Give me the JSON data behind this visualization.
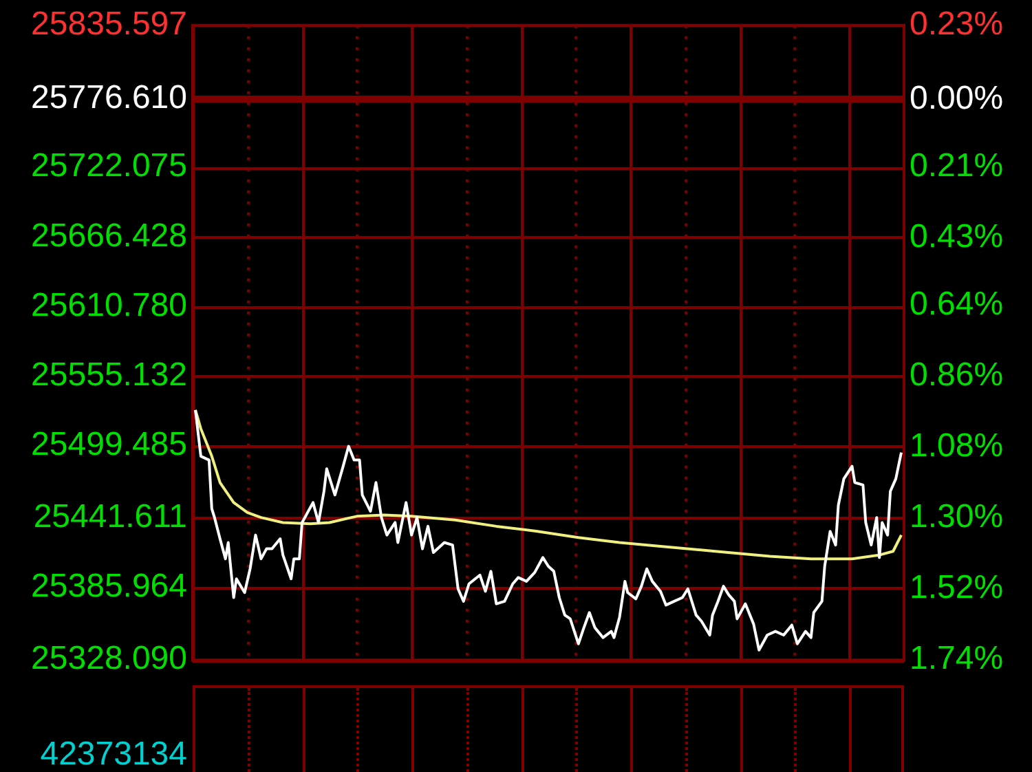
{
  "chart_data": [
    {
      "type": "line",
      "categories": [
        null,
        null,
        null,
        null,
        null,
        null,
        null,
        null,
        null,
        null,
        null,
        null,
        null,
        null,
        null,
        null,
        null,
        null,
        null,
        null,
        null,
        null,
        null,
        null,
        null,
        null,
        null,
        null,
        null,
        null,
        null,
        null,
        null,
        null,
        null,
        null,
        null,
        null,
        null,
        null,
        null,
        null,
        null,
        null,
        null,
        null,
        null,
        null,
        null,
        null,
        null,
        null,
        null,
        null,
        null,
        null,
        null,
        null,
        null,
        null,
        null,
        null,
        null,
        null,
        null,
        null,
        null,
        null,
        null,
        null,
        null,
        null,
        null,
        null,
        null,
        null,
        null,
        null,
        null,
        null,
        null,
        null,
        null,
        null,
        null,
        null,
        null,
        null,
        null,
        null,
        null,
        null,
        null,
        null,
        null,
        null,
        null,
        null,
        null,
        null,
        null,
        null,
        null,
        null,
        null,
        null,
        null,
        null,
        null,
        null,
        null,
        null,
        null,
        null,
        null,
        null,
        null,
        null,
        null,
        null,
        null,
        null,
        null,
        null,
        null,
        null,
        null,
        null,
        null,
        null,
        null,
        null,
        null,
        null,
        null,
        null,
        null,
        null,
        null,
        null,
        null,
        null,
        null,
        null,
        null,
        null,
        null,
        null,
        null,
        null,
        null,
        null,
        null,
        null,
        null,
        null,
        null,
        null,
        null,
        null,
        null,
        null,
        null,
        null,
        null,
        null,
        null,
        null,
        null,
        null,
        null,
        null,
        null,
        null,
        null,
        null,
        null,
        null,
        null,
        null,
        null,
        null,
        null,
        null,
        null,
        null,
        null,
        null,
        null,
        null,
        null,
        null,
        null,
        null,
        null,
        null,
        null,
        null,
        null,
        null,
        null,
        null,
        null,
        null,
        null,
        null,
        null,
        null,
        null,
        null,
        null,
        null,
        null,
        null,
        null,
        null,
        null,
        null,
        null,
        null,
        null,
        null,
        null,
        null,
        null,
        null,
        null,
        null,
        null,
        null,
        null,
        null,
        null,
        null,
        null,
        null,
        null,
        null,
        null,
        null,
        null,
        null,
        null,
        null,
        null,
        null,
        null,
        null,
        null,
        null,
        null,
        null,
        null,
        null,
        null,
        null,
        null,
        null,
        null,
        null,
        null
      ],
      "ylim": [
        25328.09,
        25835.597
      ],
      "yticks": [
        {
          "value": 25835.597,
          "label": "25835.597"
        },
        {
          "value": 25776.61,
          "label": "25776.610"
        },
        {
          "value": 25722.075,
          "label": "25722.075"
        },
        {
          "value": 25666.428,
          "label": "25666.428"
        },
        {
          "value": 25610.78,
          "label": "25610.780"
        },
        {
          "value": 25555.132,
          "label": "25555.132"
        },
        {
          "value": 25499.485,
          "label": "25499.485"
        },
        {
          "value": 25441.611,
          "label": "25441.611"
        },
        {
          "value": 25385.964,
          "label": "25385.964"
        },
        {
          "value": 25328.09,
          "label": "25328.090"
        }
      ],
      "y2lim": [
        -1.74,
        0.23
      ],
      "y2ticks": [
        {
          "value": 0.23,
          "label": "0.23%"
        },
        {
          "value": 0,
          "label": "0.00%"
        },
        {
          "value": -0.21,
          "label": "0.21%"
        },
        {
          "value": -0.43,
          "label": "0.43%"
        },
        {
          "value": -0.64,
          "label": "0.64%"
        },
        {
          "value": -0.86,
          "label": "0.86%"
        },
        {
          "value": -1.08,
          "label": "1.08%"
        },
        {
          "value": -1.3,
          "label": "1.30%"
        },
        {
          "value": -1.52,
          "label": "1.52%"
        },
        {
          "value": -1.74,
          "label": "1.74%"
        }
      ],
      "grid": true,
      "legend": false,
      "marker": "none",
      "ref_lines": [
        {
          "axis": "y",
          "value": 25776.61,
          "color": "#800000"
        }
      ],
      "series": [
        {
          "color": "#ffffff",
          "values": [
            null,
            25528,
            null,
            25491,
            null,
            null,
            25488,
            25449,
            25442,
            null,
            25425,
            null,
            25409,
            25422,
            null,
            25378,
            25393,
            null,
            null,
            25382,
            null,
            25401,
            null,
            25428,
            null,
            25409,
            null,
            25417,
            null,
            25417,
            null,
            null,
            25425,
            25412,
            null,
            null,
            25393,
            25409,
            null,
            25409,
            25438,
            null,
            null,
            null,
            25454,
            null,
            25438,
            null,
            25463,
            25481,
            null,
            null,
            25460,
            null,
            null,
            25483,
            null,
            25499,
            null,
            25488,
            null,
            25488,
            25460,
            null,
            null,
            25447,
            null,
            25470,
            null,
            25442,
            null,
            25428,
            null,
            null,
            25438,
            25422,
            null,
            null,
            25454,
            null,
            25428,
            null,
            25442,
            null,
            25417,
            null,
            25435,
            null,
            25414,
            null,
            null,
            null,
            25422,
            null,
            null,
            25420,
            null,
            25385,
            null,
            25375,
            null,
            25389,
            null,
            null,
            null,
            25396,
            null,
            25383,
            null,
            25399,
            null,
            25373,
            null,
            null,
            25375,
            null,
            null,
            25389,
            null,
            25394,
            null,
            null,
            25391,
            null,
            null,
            25398,
            null,
            null,
            25410,
            null,
            25403,
            null,
            25399,
            null,
            25378,
            null,
            25364,
            null,
            25361,
            null,
            null,
            25341,
            null,
            25354,
            null,
            25366,
            null,
            25354,
            null,
            null,
            25346,
            null,
            null,
            25351,
            25346,
            null,
            25362,
            null,
            25391,
            25382,
            null,
            null,
            25377,
            null,
            25387,
            null,
            25401,
            null,
            25391,
            null,
            null,
            25383,
            null,
            25372,
            null,
            null,
            25375,
            null,
            null,
            25378,
            null,
            25385,
            null,
            null,
            25364,
            null,
            25359,
            null,
            null,
            25348,
            25364,
            null,
            25375,
            null,
            25387,
            null,
            25380,
            null,
            25375,
            25361,
            null,
            null,
            25373,
            null,
            null,
            25357,
            null,
            25336,
            null,
            null,
            25348,
            null,
            null,
            25351,
            null,
            null,
            25348,
            null,
            null,
            25356,
            null,
            25341,
            null,
            null,
            25351,
            null,
            25346,
            25366,
            null,
            null,
            25375,
            25403,
            null,
            25431,
            null,
            25420,
            25452,
            null,
            25473,
            null,
            null,
            25483,
            25470,
            null,
            null,
            25468,
            25438,
            null,
            25420,
            null,
            25442,
            25410,
            25438,
            null,
            25428,
            25463,
            null,
            25473,
            null,
            25494,
            null
          ]
        },
        {
          "color": "#f0f080",
          "values": [
            null,
            25528,
            null,
            25513,
            null,
            null,
            null,
            25491,
            null,
            null,
            25470,
            null,
            null,
            null,
            null,
            25454,
            null,
            null,
            null,
            null,
            25446,
            null,
            null,
            null,
            null,
            25442,
            null,
            null,
            null,
            null,
            null,
            null,
            null,
            25438,
            null,
            null,
            null,
            null,
            null,
            null,
            null,
            null,
            null,
            25437,
            null,
            null,
            null,
            null,
            null,
            null,
            25438,
            null,
            null,
            null,
            null,
            null,
            null,
            null,
            null,
            null,
            25443,
            null,
            null,
            null,
            null,
            null,
            null,
            null,
            null,
            null,
            25444,
            null,
            null,
            null,
            null,
            null,
            null,
            null,
            null,
            null,
            25443,
            null,
            null,
            null,
            null,
            null,
            null,
            null,
            null,
            null,
            null,
            null,
            null,
            null,
            null,
            null,
            25440,
            null,
            null,
            null,
            null,
            null,
            null,
            null,
            null,
            null,
            null,
            null,
            null,
            null,
            null,
            25435,
            null,
            null,
            null,
            null,
            null,
            null,
            null,
            null,
            null,
            null,
            null,
            null,
            null,
            null,
            25431,
            null,
            null,
            null,
            null,
            null,
            null,
            null,
            null,
            null,
            null,
            null,
            null,
            null,
            null,
            25426,
            null,
            null,
            null,
            null,
            null,
            null,
            null,
            null,
            null,
            null,
            null,
            null,
            null,
            null,
            25422,
            null,
            null,
            null,
            null,
            null,
            null,
            null,
            null,
            null,
            null,
            null,
            null,
            null,
            null,
            25419,
            null,
            null,
            null,
            null,
            null,
            null,
            null,
            null,
            null,
            null,
            null,
            null,
            null,
            null,
            null,
            null,
            null,
            null,
            null,
            25415,
            null,
            null,
            null,
            null,
            null,
            null,
            null,
            null,
            null,
            null,
            null,
            null,
            null,
            null,
            null,
            null,
            null,
            null,
            null,
            25411,
            null,
            null,
            null,
            null,
            null,
            null,
            null,
            null,
            null,
            null,
            null,
            null,
            null,
            null,
            25409,
            null,
            null,
            null,
            null,
            null,
            null,
            null,
            null,
            null,
            null,
            null,
            null,
            null,
            null,
            25409,
            null,
            null,
            null,
            null,
            null,
            null,
            null,
            null,
            null,
            25412,
            null,
            null,
            null,
            null,
            25415,
            null,
            null,
            25428,
            null
          ]
        }
      ]
    },
    {
      "type": "other",
      "color": "#00d0d0",
      "annotations": [
        "42373134"
      ]
    }
  ]
}
